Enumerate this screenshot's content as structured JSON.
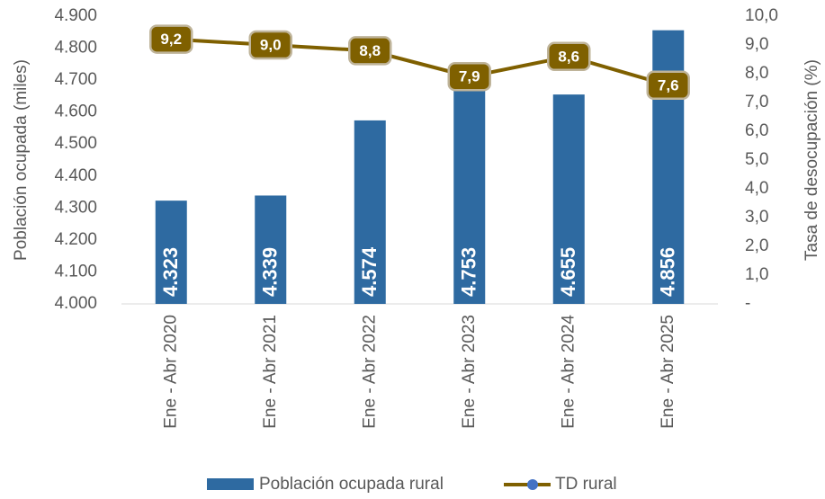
{
  "chart_data": {
    "type": "bar_line",
    "categories": [
      "Ene - Abr 2020",
      "Ene - Abr 2021",
      "Ene - Abr 2022",
      "Ene - Abr 2023",
      "Ene - Abr 2024",
      "Ene - Abr 2025"
    ],
    "ylabel": "Población ocupada (miles)",
    "y2label": "Tasa de desocupación (%)",
    "ylim": [
      4000,
      4900
    ],
    "yticks": [
      {
        "value": 4000,
        "label": "4.000"
      },
      {
        "value": 4100,
        "label": "4.100"
      },
      {
        "value": 4200,
        "label": "4.200"
      },
      {
        "value": 4300,
        "label": "4.300"
      },
      {
        "value": 4400,
        "label": "4.400"
      },
      {
        "value": 4500,
        "label": "4.500"
      },
      {
        "value": 4600,
        "label": "4.600"
      },
      {
        "value": 4700,
        "label": "4.700"
      },
      {
        "value": 4800,
        "label": "4.800"
      },
      {
        "value": 4900,
        "label": "4.900"
      }
    ],
    "y2lim": [
      0,
      10
    ],
    "y2ticks": [
      {
        "value": 0,
        "label": "-"
      },
      {
        "value": 1,
        "label": "1,0"
      },
      {
        "value": 2,
        "label": "2,0"
      },
      {
        "value": 3,
        "label": "3,0"
      },
      {
        "value": 4,
        "label": "4,0"
      },
      {
        "value": 5,
        "label": "5,0"
      },
      {
        "value": 6,
        "label": "6,0"
      },
      {
        "value": 7,
        "label": "7,0"
      },
      {
        "value": 8,
        "label": "8,0"
      },
      {
        "value": 9,
        "label": "9,0"
      },
      {
        "value": 10,
        "label": "10,0"
      }
    ],
    "series": [
      {
        "name": "Población ocupada rural",
        "type": "bar",
        "color": "#2e6aa1",
        "values": [
          4323,
          4339,
          4574,
          4753,
          4655,
          4856
        ],
        "value_labels": [
          "4.323",
          "4.339",
          "4.574",
          "4.753",
          "4.655",
          "4.856"
        ]
      },
      {
        "name": "TD rural",
        "type": "line",
        "axis": "y2",
        "color": "#7f6000",
        "marker_color": "#4472c4",
        "values": [
          9.2,
          9.0,
          8.8,
          7.9,
          8.6,
          7.6
        ],
        "value_labels": [
          "9,2",
          "9,0",
          "8,8",
          "7,9",
          "8,6",
          "7,6"
        ]
      }
    ]
  }
}
